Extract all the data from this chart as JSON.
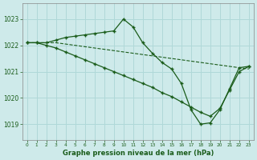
{
  "title": "Graphe pression niveau de la mer (hPa)",
  "bg_color": "#ceeaea",
  "grid_color": "#b0d8d8",
  "line_color": "#1a5c1a",
  "xlim": [
    -0.5,
    23.5
  ],
  "ylim": [
    1018.4,
    1023.6
  ],
  "yticks": [
    1019,
    1020,
    1021,
    1022,
    1023
  ],
  "xticks": [
    0,
    1,
    2,
    3,
    4,
    5,
    6,
    7,
    8,
    9,
    10,
    11,
    12,
    13,
    14,
    15,
    16,
    17,
    18,
    19,
    20,
    21,
    22,
    23
  ],
  "series": [
    {
      "x": [
        0,
        1,
        2,
        3,
        4,
        5,
        6,
        7,
        8,
        9,
        10,
        11,
        12,
        13,
        14,
        15,
        16,
        17,
        18,
        19,
        20,
        21,
        22,
        23
      ],
      "y": [
        1022.1,
        1022.1,
        1022.1,
        1022.2,
        1022.3,
        1022.35,
        1022.4,
        1022.45,
        1022.5,
        1022.55,
        1023.0,
        1022.7,
        1022.1,
        1021.7,
        1021.35,
        1021.1,
        1020.55,
        1019.55,
        1019.0,
        1019.05,
        1019.55,
        1020.35,
        1021.15,
        1021.2
      ]
    },
    {
      "x": [
        0,
        1,
        2,
        3,
        4,
        5,
        6,
        7,
        8,
        9,
        10,
        11,
        12,
        13,
        14,
        15,
        16,
        17,
        18,
        19,
        20,
        21,
        22,
        23
      ],
      "y": [
        1022.1,
        1022.1,
        1022.1,
        1022.1,
        1022.05,
        1022.0,
        1021.95,
        1021.9,
        1021.85,
        1021.8,
        1021.75,
        1021.7,
        1021.65,
        1021.6,
        1021.55,
        1021.5,
        1021.45,
        1021.4,
        1021.35,
        1021.3,
        1021.25,
        1021.2,
        1021.15,
        1021.1
      ]
    },
    {
      "x": [
        0,
        1,
        2,
        3,
        4,
        5,
        6,
        7,
        8,
        9,
        10,
        11,
        12,
        13,
        14,
        15,
        16,
        17,
        18,
        19,
        20,
        21,
        22,
        23
      ],
      "y": [
        1022.1,
        1022.1,
        1022.0,
        1021.9,
        1021.75,
        1021.6,
        1021.45,
        1021.3,
        1021.15,
        1021.0,
        1020.85,
        1020.7,
        1020.55,
        1020.4,
        1020.2,
        1020.05,
        1019.85,
        1019.65,
        1019.45,
        1019.3,
        1019.6,
        1020.3,
        1021.0,
        1021.2
      ]
    }
  ]
}
